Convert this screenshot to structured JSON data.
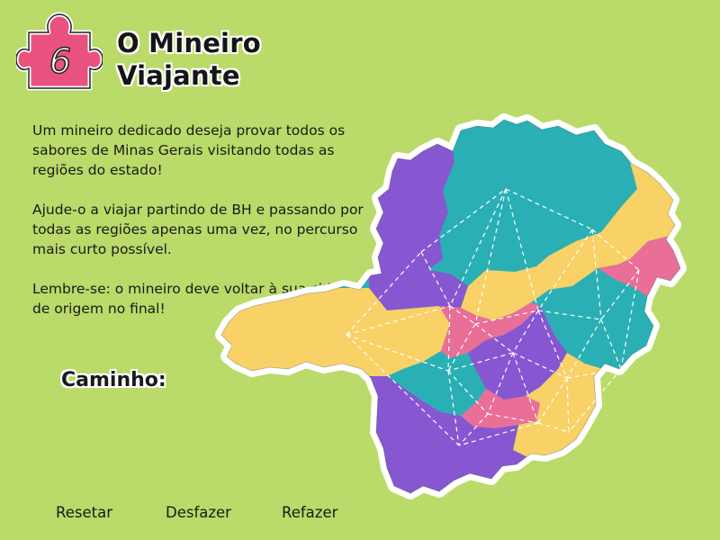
{
  "badge": {
    "number": "6",
    "color": "#e9527e"
  },
  "title": {
    "line1": "O Mineiro",
    "line2": "Viajante"
  },
  "instructions": [
    "Um mineiro dedicado deseja provar todos os sabores de Minas Gerais visitando todas as regiões do estado!",
    "Ajude-o a viajar partindo de BH e passando por todas as regiões apenas uma vez, no percurso mais curto possível.",
    "Lembre-se: o mineiro deve voltar à sua cidade de origem no final!"
  ],
  "path_label": "Caminho:",
  "controls": {
    "reset": "Resetar",
    "undo": "Desfazer",
    "redo": "Refazer"
  },
  "colors": {
    "background": "#bada6a",
    "teal": "#2ab0b4",
    "purple": "#8757d1",
    "yellow": "#f8d167",
    "pink": "#ea6f97"
  }
}
